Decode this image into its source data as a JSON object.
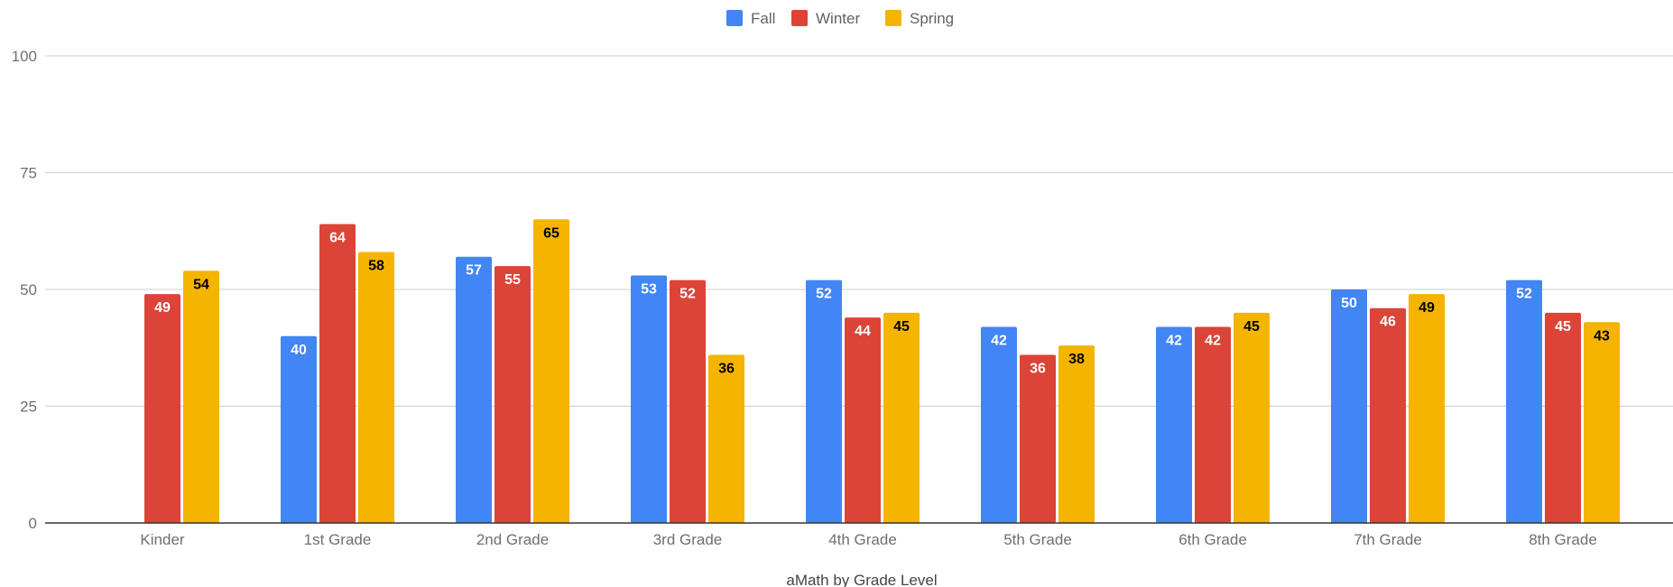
{
  "chart_data": {
    "type": "bar",
    "title": "",
    "xlabel": "aMath by Grade Level",
    "ylabel": "",
    "ylim": [
      0,
      100
    ],
    "yticks": [
      0,
      25,
      50,
      75,
      100
    ],
    "grid": true,
    "legend_position": "top-center",
    "categories": [
      "Kinder",
      "1st Grade",
      "2nd Grade",
      "3rd Grade",
      "4th Grade",
      "5th Grade",
      "6th Grade",
      "7th Grade",
      "8th Grade"
    ],
    "series": [
      {
        "name": "Fall",
        "color": "#4285f4",
        "label_color": "#ffffff",
        "values": [
          null,
          40,
          57,
          53,
          52,
          42,
          42,
          50,
          52
        ]
      },
      {
        "name": "Winter",
        "color": "#db4437",
        "label_color": "#ffffff",
        "values": [
          49,
          64,
          55,
          52,
          44,
          36,
          42,
          46,
          45
        ]
      },
      {
        "name": "Spring",
        "color": "#f4b400",
        "label_color": "#000000",
        "values": [
          54,
          58,
          65,
          36,
          45,
          38,
          45,
          49,
          43
        ]
      }
    ]
  }
}
